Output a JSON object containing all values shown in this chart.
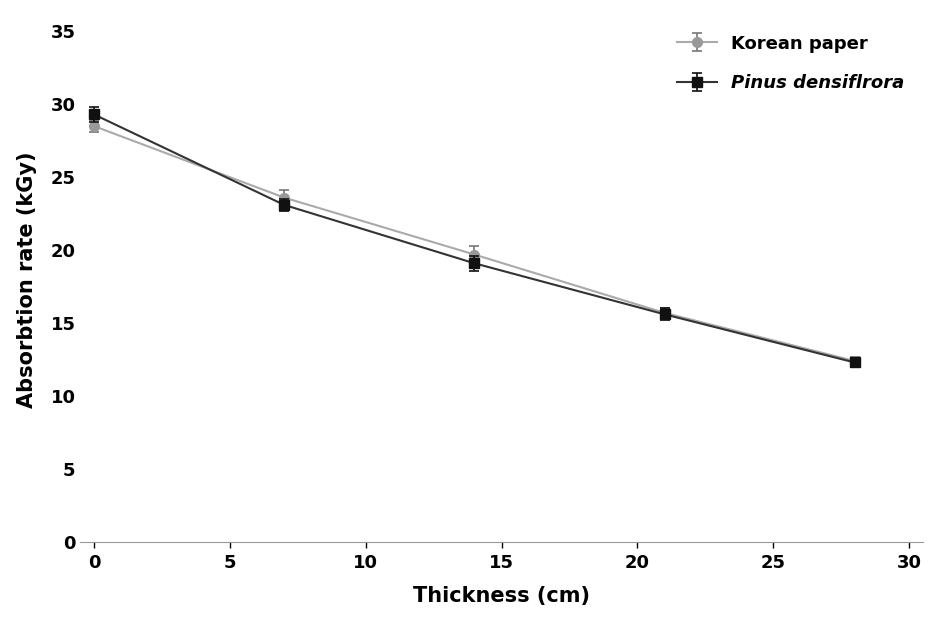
{
  "x": [
    0,
    7,
    14,
    21,
    28
  ],
  "korean_paper_y": [
    28.5,
    23.6,
    19.7,
    15.7,
    12.4
  ],
  "korean_paper_err": [
    0.4,
    0.5,
    0.6,
    0.3,
    0.3
  ],
  "pinus_y": [
    29.3,
    23.1,
    19.1,
    15.6,
    12.3
  ],
  "pinus_err": [
    0.5,
    0.4,
    0.5,
    0.4,
    0.3
  ],
  "korean_paper_color": "#999999",
  "pinus_color": "#111111",
  "line_color_paper": "#aaaaaa",
  "line_color_pinus": "#333333",
  "xlabel": "Thickness (cm)",
  "ylabel": "Absorbtion rate (kGy)",
  "xlim": [
    -0.5,
    30.5
  ],
  "ylim": [
    0,
    36
  ],
  "xticks": [
    0,
    5,
    10,
    15,
    20,
    25,
    30
  ],
  "yticks": [
    0,
    5,
    10,
    15,
    20,
    25,
    30,
    35
  ],
  "legend_korean": "Korean paper",
  "legend_pinus": "Pinus densiflrora",
  "background_color": "#ffffff",
  "figure_background": "#ffffff"
}
